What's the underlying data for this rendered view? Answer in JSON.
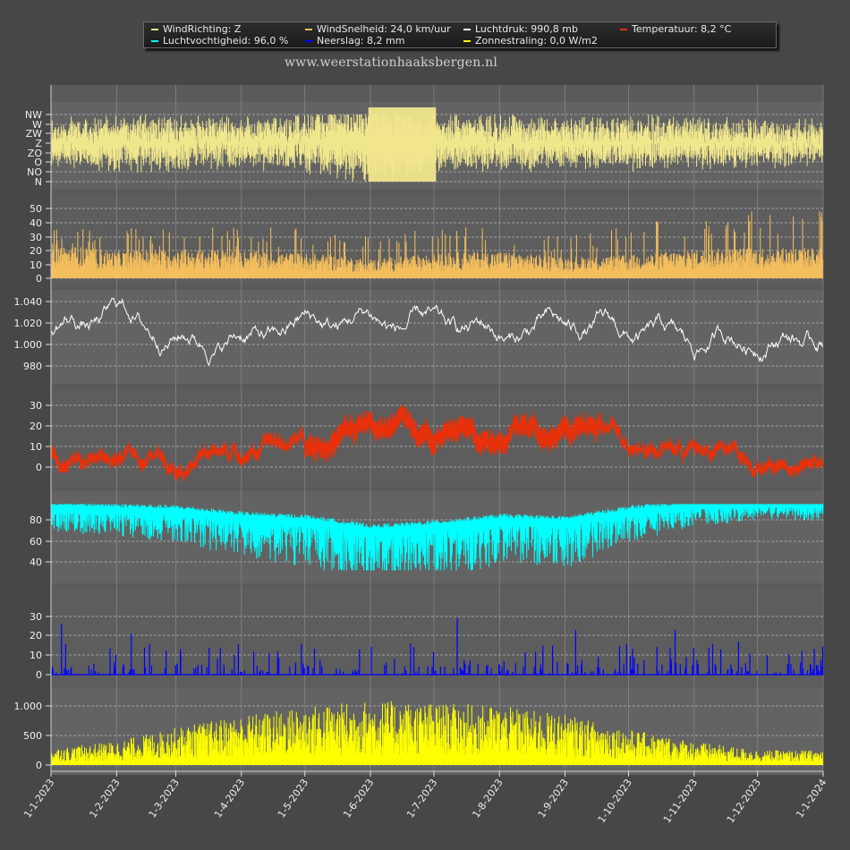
{
  "site_url": "www.weerstationhaaksbergen.nl",
  "legend": [
    {
      "label": "WindRichting: Z",
      "color": "#f0e68c"
    },
    {
      "label": "WindSnelheid: 24,0 km/uur",
      "color": "#f4be5c"
    },
    {
      "label": "Luchtdruk: 990,8 mb",
      "color": "#ffffff"
    },
    {
      "label": "Temperatuur: 8,2 °C",
      "color": "#e8300a"
    },
    {
      "label": "Luchtvochtigheid: 96,0 %",
      "color": "#00ffff"
    },
    {
      "label": "Neerslag: 8,2 mm",
      "color": "#0000ff"
    },
    {
      "label": "Zonnestraling: 0,0 W/m2",
      "color": "#ffff00"
    }
  ],
  "chart_data": {
    "type": "line",
    "x_range": [
      "1-1-2023",
      "1-1-2024"
    ],
    "x_tick_labels": [
      "1-1-2023",
      "1-2-2023",
      "1-3-2023",
      "1-4-2023",
      "1-5-2023",
      "1-6-2023",
      "1-7-2023",
      "1-8-2023",
      "1-9-2023",
      "1-10-2023",
      "1-11-2023",
      "1-12-2023",
      "1-1-2024"
    ],
    "grid": true,
    "legend_position": "top",
    "panels": [
      {
        "name": "WindRichting",
        "color": "#f0e68c",
        "tick_labels": [
          "NW",
          "W",
          "ZW",
          "Z",
          "ZO",
          "O",
          "NO",
          "N"
        ],
        "ylim": [
          0,
          7
        ],
        "monthly_spread": [
          0.45,
          0.6,
          0.55,
          0.5,
          0.6,
          0.95,
          0.6,
          0.55,
          0.5,
          0.55,
          0.5,
          0.45
        ]
      },
      {
        "name": "WindSnelheid",
        "color": "#f4be5c",
        "unit": "km/uur",
        "tick_labels": [
          "0",
          "10",
          "20",
          "30",
          "40",
          "50"
        ],
        "tick_values": [
          0,
          10,
          20,
          30,
          40,
          50
        ],
        "ylim": [
          0,
          55
        ],
        "monthly_mean": [
          18,
          14,
          15,
          14,
          13,
          10,
          13,
          14,
          11,
          12,
          15,
          16
        ],
        "monthly_peak": [
          45,
          35,
          40,
          38,
          35,
          30,
          44,
          35,
          30,
          38,
          48,
          52
        ]
      },
      {
        "name": "Luchtdruk",
        "color": "#ffffff",
        "unit": "mb",
        "tick_labels": [
          "980",
          "1.000",
          "1.020",
          "1.040"
        ],
        "tick_values": [
          980,
          1000,
          1020,
          1040
        ],
        "ylim": [
          970,
          1044
        ],
        "monthly_mean": [
          1010,
          1030,
          1008,
          1005,
          1018,
          1022,
          1014,
          1008,
          1016,
          1010,
          998,
          1008
        ]
      },
      {
        "name": "Temperatuur",
        "color": "#e8300a",
        "unit": "°C",
        "tick_labels": [
          "0",
          "10",
          "20",
          "30"
        ],
        "tick_values": [
          0,
          10,
          20,
          30
        ],
        "ylim": [
          -5,
          35
        ],
        "monthly_mean": [
          6,
          4,
          6,
          9,
          13,
          19,
          19,
          18,
          20,
          14,
          9,
          4
        ]
      },
      {
        "name": "Luchtvochtigheid",
        "color": "#00ffff",
        "unit": "%",
        "tick_labels": [
          "40",
          "60",
          "80"
        ],
        "tick_values": [
          40,
          60,
          80
        ],
        "ylim": [
          30,
          97
        ],
        "monthly_mean": [
          88,
          86,
          84,
          78,
          75,
          66,
          70,
          76,
          74,
          84,
          90,
          92
        ]
      },
      {
        "name": "Neerslag",
        "color": "#0000ff",
        "unit": "mm",
        "tick_labels": [
          "0",
          "10",
          "20",
          "30"
        ],
        "tick_values": [
          0,
          10,
          20,
          30
        ],
        "ylim": [
          0,
          40
        ],
        "spikes": [
          [
            5,
            26
          ],
          [
            38,
            21
          ],
          [
            170,
            16
          ],
          [
            192,
            29
          ],
          [
            248,
            23
          ],
          [
            295,
            23
          ],
          [
            311,
            14
          ],
          [
            325,
            17
          ],
          [
            355,
            12
          ]
        ]
      },
      {
        "name": "Zonnestraling",
        "color": "#ffff00",
        "unit": "W/m2",
        "tick_labels": [
          "0",
          "500",
          "1.000"
        ],
        "tick_values": [
          0,
          500,
          1000
        ],
        "ylim": [
          0,
          1220
        ],
        "monthly_peak": [
          280,
          400,
          650,
          850,
          1000,
          1100,
          1050,
          1000,
          850,
          600,
          400,
          250
        ]
      }
    ]
  }
}
